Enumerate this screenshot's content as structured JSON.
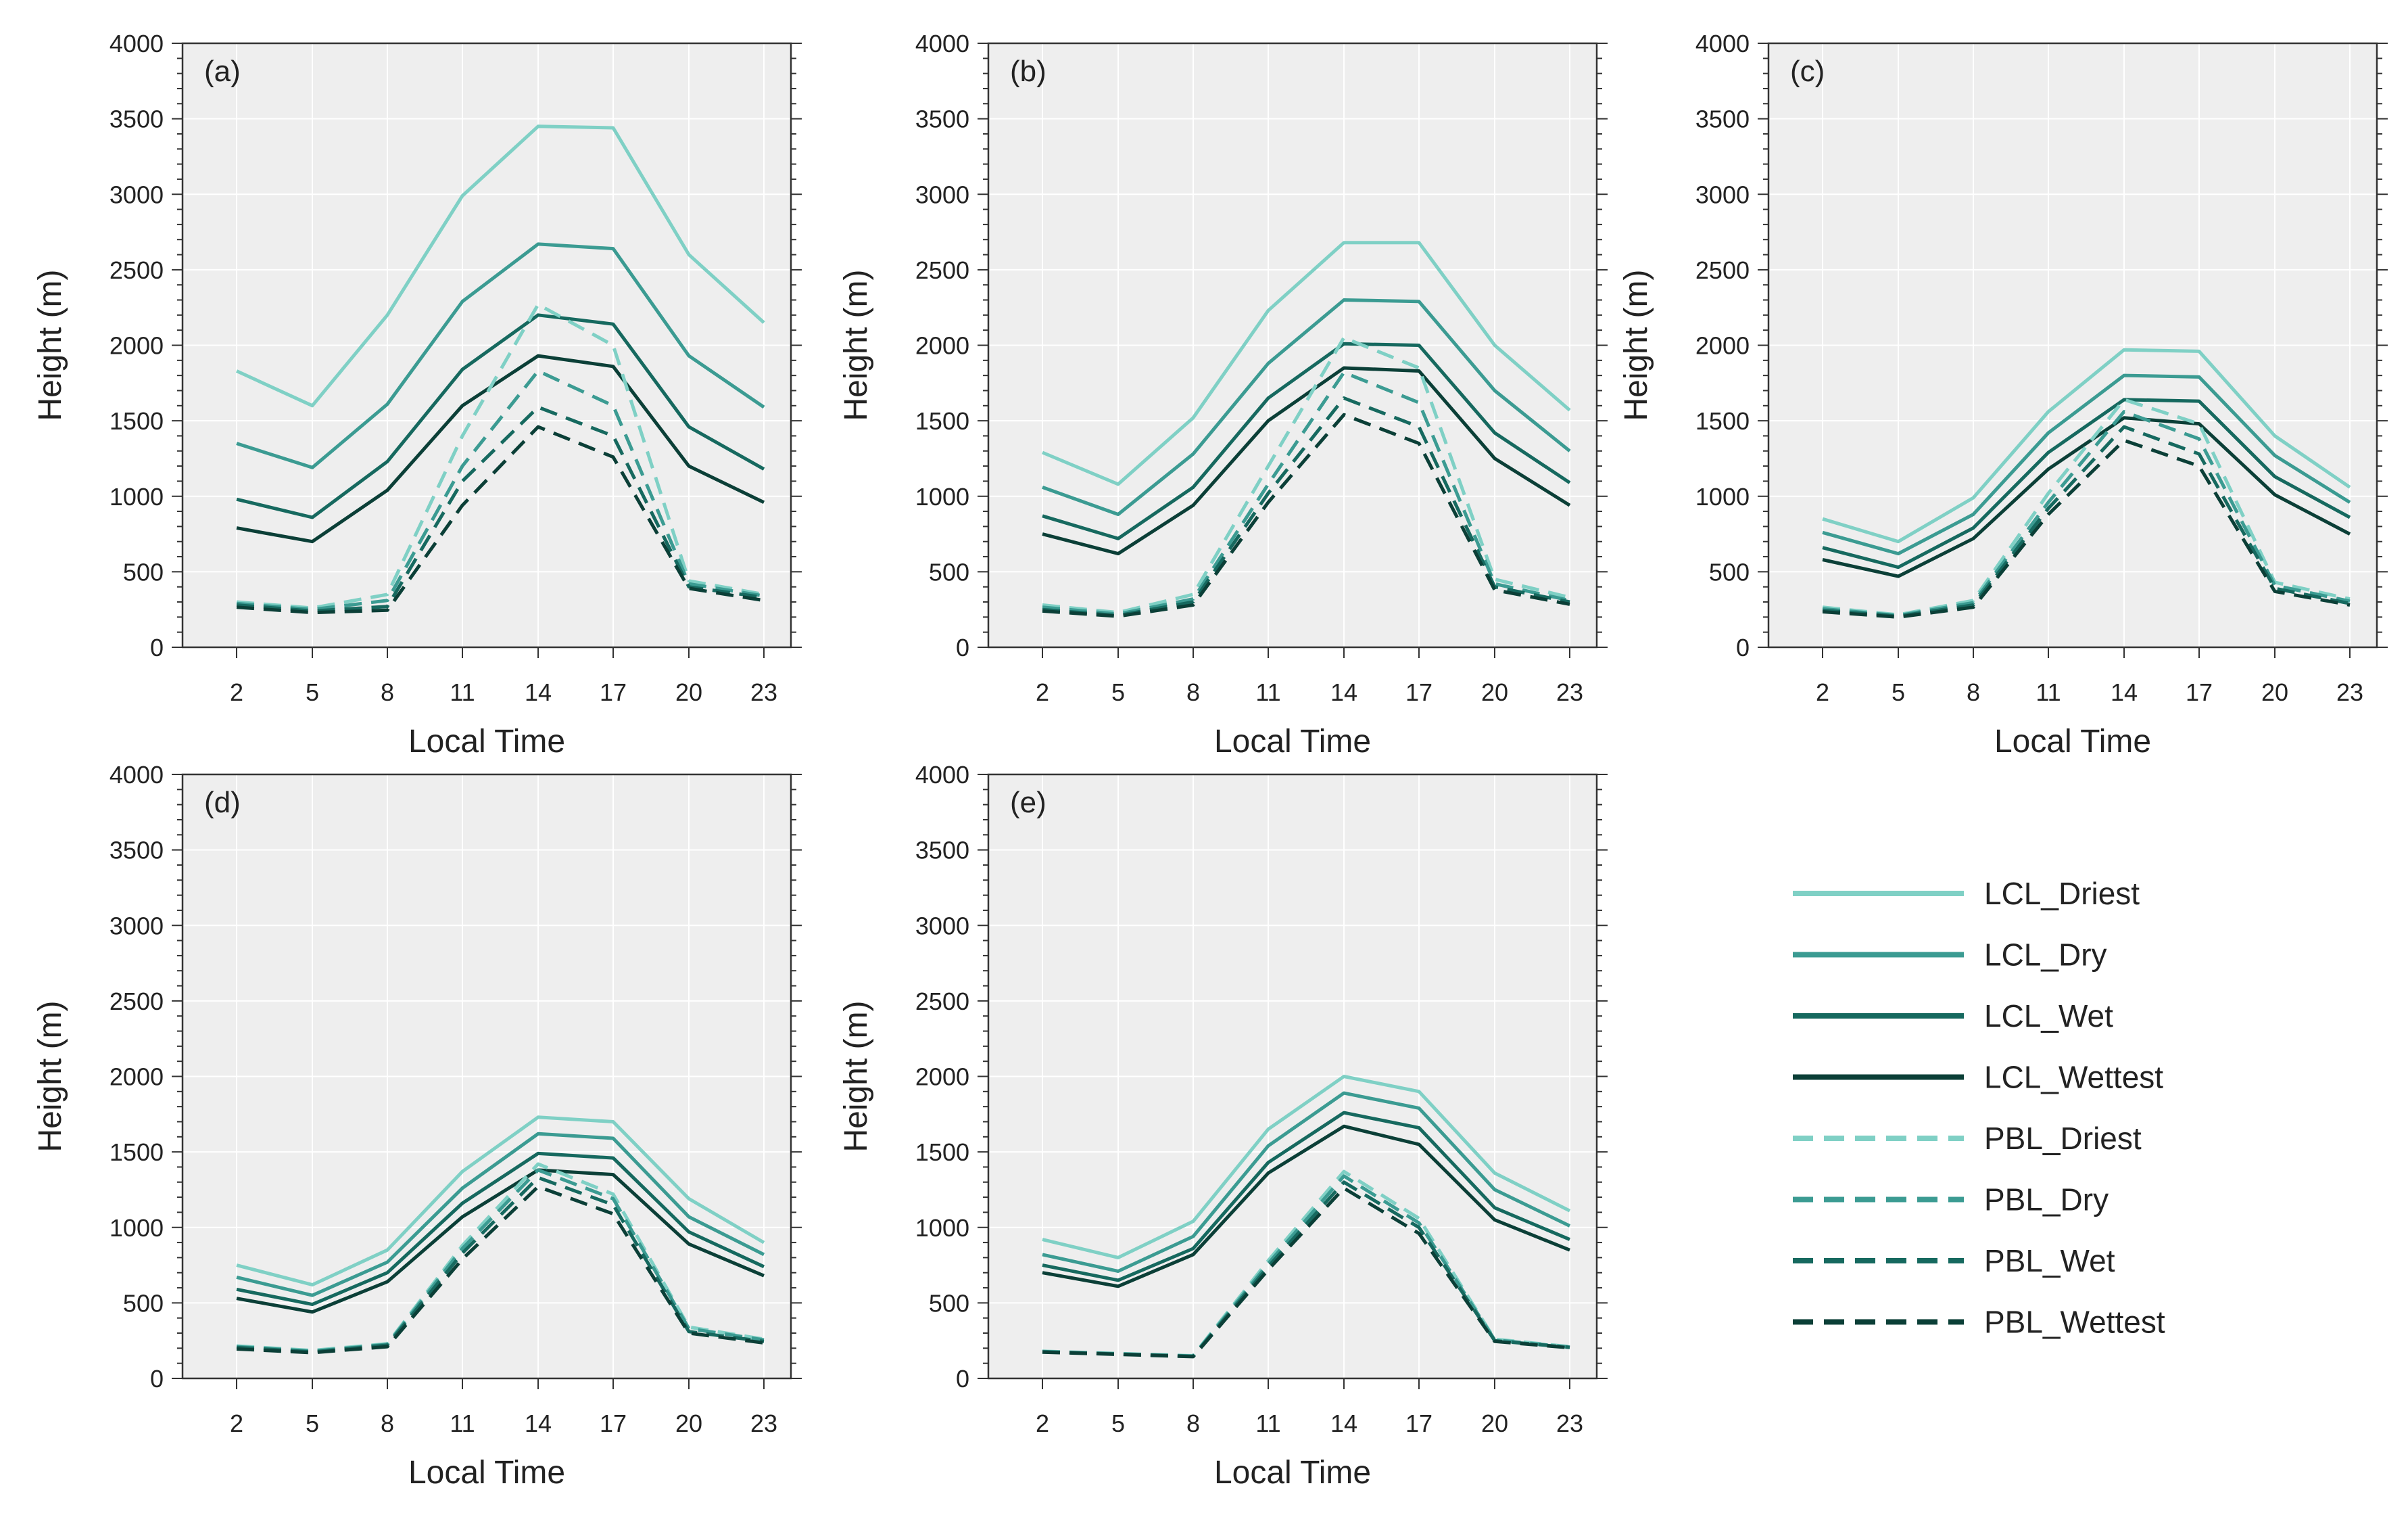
{
  "colors": {
    "driest": "#7fd0c5",
    "dry": "#3b9b92",
    "wet": "#16695f",
    "wettest": "#0b3f37",
    "plot_bg": "#eeeeee",
    "grid": "#ffffff"
  },
  "legend": {
    "placement": "right, beside panel (e)",
    "items": [
      {
        "label": "LCL_Driest",
        "key": "lcl_driest",
        "color": "#7fd0c5",
        "dash": false
      },
      {
        "label": "LCL_Dry",
        "key": "lcl_dry",
        "color": "#3b9b92",
        "dash": false
      },
      {
        "label": "LCL_Wet",
        "key": "lcl_wet",
        "color": "#16695f",
        "dash": false
      },
      {
        "label": "LCL_Wettest",
        "key": "lcl_wettest",
        "color": "#0b3f37",
        "dash": false
      },
      {
        "label": "PBL_Driest",
        "key": "pbl_driest",
        "color": "#7fd0c5",
        "dash": true
      },
      {
        "label": "PBL_Dry",
        "key": "pbl_dry",
        "color": "#3b9b92",
        "dash": true
      },
      {
        "label": "PBL_Wet",
        "key": "pbl_wet",
        "color": "#16695f",
        "dash": true
      },
      {
        "label": "PBL_Wettest",
        "key": "pbl_wettest",
        "color": "#0b3f37",
        "dash": true
      }
    ]
  },
  "chart_data": [
    {
      "type": "line",
      "panel_label": "(a)",
      "xlabel": "Local Time",
      "ylabel": "Height (m)",
      "x": [
        2,
        5,
        8,
        11,
        14,
        17,
        20,
        23
      ],
      "ylim": [
        0,
        4000
      ],
      "yticks": [
        0,
        500,
        1000,
        1500,
        2000,
        2500,
        3000,
        3500,
        4000
      ],
      "grid": true,
      "series": [
        {
          "name": "LCL_Driest",
          "values": [
            1830,
            1600,
            2200,
            2990,
            3450,
            3440,
            2600,
            2150
          ]
        },
        {
          "name": "LCL_Dry",
          "values": [
            1350,
            1190,
            1610,
            2290,
            2670,
            2640,
            1930,
            1590
          ]
        },
        {
          "name": "LCL_Wet",
          "values": [
            980,
            860,
            1230,
            1840,
            2200,
            2140,
            1460,
            1180
          ]
        },
        {
          "name": "LCL_Wettest",
          "values": [
            790,
            700,
            1040,
            1600,
            1930,
            1860,
            1200,
            960
          ]
        },
        {
          "name": "PBL_Driest",
          "values": [
            300,
            260,
            350,
            1400,
            2270,
            2000,
            440,
            350
          ]
        },
        {
          "name": "PBL_Dry",
          "values": [
            290,
            250,
            310,
            1200,
            1830,
            1600,
            420,
            340
          ]
        },
        {
          "name": "PBL_Wet",
          "values": [
            280,
            240,
            270,
            1100,
            1590,
            1400,
            400,
            330
          ]
        },
        {
          "name": "PBL_Wettest",
          "values": [
            265,
            230,
            245,
            940,
            1460,
            1260,
            390,
            310
          ]
        }
      ]
    },
    {
      "type": "line",
      "panel_label": "(b)",
      "xlabel": "Local Time",
      "ylabel": "Height (m)",
      "x": [
        2,
        5,
        8,
        11,
        14,
        17,
        20,
        23
      ],
      "ylim": [
        0,
        4000
      ],
      "yticks": [
        0,
        500,
        1000,
        1500,
        2000,
        2500,
        3000,
        3500,
        4000
      ],
      "grid": true,
      "series": [
        {
          "name": "LCL_Driest",
          "values": [
            1290,
            1080,
            1520,
            2230,
            2680,
            2680,
            2000,
            1570
          ]
        },
        {
          "name": "LCL_Dry",
          "values": [
            1060,
            880,
            1280,
            1880,
            2300,
            2290,
            1700,
            1300
          ]
        },
        {
          "name": "LCL_Wet",
          "values": [
            870,
            720,
            1060,
            1650,
            2010,
            2000,
            1420,
            1090
          ]
        },
        {
          "name": "LCL_Wettest",
          "values": [
            750,
            620,
            940,
            1500,
            1850,
            1830,
            1250,
            940
          ]
        },
        {
          "name": "PBL_Driest",
          "values": [
            280,
            230,
            350,
            1200,
            2050,
            1850,
            450,
            330
          ]
        },
        {
          "name": "PBL_Dry",
          "values": [
            265,
            220,
            320,
            1080,
            1820,
            1620,
            420,
            310
          ]
        },
        {
          "name": "PBL_Wet",
          "values": [
            250,
            210,
            300,
            1020,
            1650,
            1460,
            400,
            300
          ]
        },
        {
          "name": "PBL_Wettest",
          "values": [
            240,
            205,
            280,
            960,
            1540,
            1350,
            380,
            285
          ]
        }
      ]
    },
    {
      "type": "line",
      "panel_label": "(c)",
      "xlabel": "Local Time",
      "ylabel": "Height (m)",
      "x": [
        2,
        5,
        8,
        11,
        14,
        17,
        20,
        23
      ],
      "ylim": [
        0,
        4000
      ],
      "yticks": [
        0,
        500,
        1000,
        1500,
        2000,
        2500,
        3000,
        3500,
        4000
      ],
      "grid": true,
      "series": [
        {
          "name": "LCL_Driest",
          "values": [
            850,
            700,
            990,
            1560,
            1970,
            1960,
            1400,
            1060
          ]
        },
        {
          "name": "LCL_Dry",
          "values": [
            760,
            620,
            880,
            1420,
            1800,
            1790,
            1270,
            960
          ]
        },
        {
          "name": "LCL_Wet",
          "values": [
            660,
            530,
            790,
            1290,
            1640,
            1630,
            1130,
            860
          ]
        },
        {
          "name": "LCL_Wettest",
          "values": [
            580,
            470,
            720,
            1180,
            1520,
            1480,
            1010,
            750
          ]
        },
        {
          "name": "PBL_Driest",
          "values": [
            265,
            215,
            310,
            1020,
            1640,
            1480,
            430,
            320
          ]
        },
        {
          "name": "PBL_Dry",
          "values": [
            255,
            210,
            295,
            960,
            1560,
            1380,
            410,
            305
          ]
        },
        {
          "name": "PBL_Wet",
          "values": [
            245,
            205,
            280,
            920,
            1460,
            1280,
            390,
            290
          ]
        },
        {
          "name": "PBL_Wettest",
          "values": [
            235,
            200,
            265,
            880,
            1370,
            1200,
            370,
            280
          ]
        }
      ]
    },
    {
      "type": "line",
      "panel_label": "(d)",
      "xlabel": "Local Time",
      "ylabel": "Height (m)",
      "x": [
        2,
        5,
        8,
        11,
        14,
        17,
        20,
        23
      ],
      "ylim": [
        0,
        4000
      ],
      "yticks": [
        0,
        500,
        1000,
        1500,
        2000,
        2500,
        3000,
        3500,
        4000
      ],
      "grid": true,
      "series": [
        {
          "name": "LCL_Driest",
          "values": [
            750,
            620,
            850,
            1370,
            1730,
            1700,
            1190,
            900
          ]
        },
        {
          "name": "LCL_Dry",
          "values": [
            670,
            550,
            770,
            1260,
            1620,
            1590,
            1070,
            820
          ]
        },
        {
          "name": "LCL_Wet",
          "values": [
            590,
            490,
            700,
            1160,
            1490,
            1460,
            970,
            740
          ]
        },
        {
          "name": "LCL_Wettest",
          "values": [
            530,
            440,
            640,
            1070,
            1380,
            1350,
            890,
            680
          ]
        },
        {
          "name": "PBL_Driest",
          "values": [
            215,
            185,
            230,
            880,
            1420,
            1220,
            340,
            260
          ]
        },
        {
          "name": "PBL_Dry",
          "values": [
            210,
            180,
            225,
            860,
            1380,
            1190,
            330,
            255
          ]
        },
        {
          "name": "PBL_Wet",
          "values": [
            205,
            175,
            220,
            830,
            1330,
            1150,
            310,
            245
          ]
        },
        {
          "name": "PBL_Wettest",
          "values": [
            195,
            170,
            210,
            790,
            1270,
            1090,
            300,
            235
          ]
        }
      ]
    },
    {
      "type": "line",
      "panel_label": "(e)",
      "xlabel": "Local Time",
      "ylabel": "Height (m)",
      "x": [
        2,
        5,
        8,
        11,
        14,
        17,
        20,
        23
      ],
      "ylim": [
        0,
        4000
      ],
      "yticks": [
        0,
        500,
        1000,
        1500,
        2000,
        2500,
        3000,
        3500,
        4000
      ],
      "grid": true,
      "series": [
        {
          "name": "LCL_Driest",
          "values": [
            920,
            800,
            1040,
            1650,
            2000,
            1900,
            1360,
            1110
          ]
        },
        {
          "name": "LCL_Dry",
          "values": [
            820,
            710,
            940,
            1540,
            1890,
            1790,
            1250,
            1010
          ]
        },
        {
          "name": "LCL_Wet",
          "values": [
            750,
            650,
            860,
            1430,
            1760,
            1660,
            1130,
            920
          ]
        },
        {
          "name": "LCL_Wettest",
          "values": [
            700,
            610,
            820,
            1360,
            1670,
            1550,
            1050,
            850
          ]
        },
        {
          "name": "PBL_Driest",
          "values": [
            180,
            165,
            150,
            780,
            1370,
            1060,
            260,
            210
          ]
        },
        {
          "name": "PBL_Dry",
          "values": [
            178,
            163,
            148,
            760,
            1340,
            1030,
            255,
            207
          ]
        },
        {
          "name": "PBL_Wet",
          "values": [
            176,
            161,
            146,
            740,
            1300,
            1000,
            250,
            205
          ]
        },
        {
          "name": "PBL_Wettest",
          "values": [
            174,
            159,
            144,
            720,
            1260,
            960,
            245,
            203
          ]
        }
      ]
    }
  ]
}
